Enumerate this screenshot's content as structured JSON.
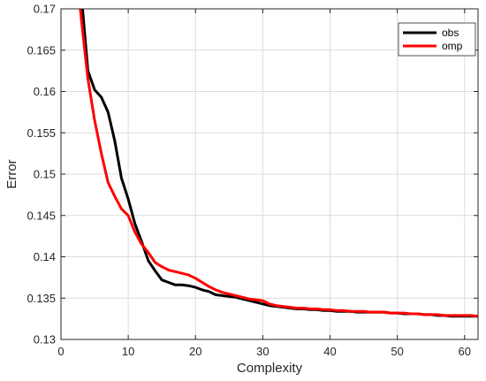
{
  "chart_data": {
    "type": "line",
    "title": "",
    "xlabel": "Complexity",
    "ylabel": "Error",
    "xlim": [
      0,
      62
    ],
    "ylim": [
      0.13,
      0.17
    ],
    "xticks": [
      0,
      10,
      20,
      30,
      40,
      50,
      60
    ],
    "yticks": [
      0.13,
      0.135,
      0.14,
      0.145,
      0.15,
      0.155,
      0.16,
      0.165,
      0.17
    ],
    "xtick_labels": [
      "0",
      "10",
      "20",
      "30",
      "40",
      "50",
      "60"
    ],
    "ytick_labels": [
      "0.13",
      "0.135",
      "0.14",
      "0.145",
      "0.15",
      "0.155",
      "0.16",
      "0.165",
      "0.17"
    ],
    "grid": true,
    "legend_position": "top-right",
    "series": [
      {
        "name": "obs",
        "color": "#000000",
        "x": [
          3,
          4,
          5,
          6,
          7,
          8,
          9,
          10,
          11,
          12,
          13,
          14,
          15,
          16,
          17,
          18,
          19,
          20,
          21,
          22,
          23,
          24,
          25,
          26,
          27,
          28,
          29,
          30,
          31,
          32,
          33,
          34,
          35,
          36,
          37,
          38,
          39,
          40,
          41,
          42,
          43,
          44,
          45,
          46,
          47,
          48,
          49,
          50,
          51,
          52,
          53,
          54,
          55,
          56,
          57,
          58,
          59,
          60,
          61,
          62
        ],
        "y": [
          0.172,
          0.1625,
          0.1602,
          0.1593,
          0.1575,
          0.154,
          0.1495,
          0.147,
          0.144,
          0.1418,
          0.1395,
          0.1383,
          0.1372,
          0.1369,
          0.1366,
          0.1366,
          0.1365,
          0.1363,
          0.136,
          0.1358,
          0.1354,
          0.1353,
          0.1352,
          0.1351,
          0.1349,
          0.1347,
          0.1345,
          0.1343,
          0.1341,
          0.134,
          0.1339,
          0.1338,
          0.1337,
          0.1337,
          0.1336,
          0.1336,
          0.1335,
          0.1335,
          0.1334,
          0.1334,
          0.1334,
          0.1333,
          0.1333,
          0.1333,
          0.1333,
          0.1333,
          0.1332,
          0.1332,
          0.1331,
          0.1331,
          0.1331,
          0.133,
          0.133,
          0.1329,
          0.1329,
          0.1328,
          0.1328,
          0.1328,
          0.1328,
          0.1328
        ]
      },
      {
        "name": "omp",
        "color": "#ff0000",
        "x": [
          2.5,
          3,
          4,
          5,
          6,
          7,
          8,
          9,
          10,
          11,
          12,
          13,
          14,
          15,
          16,
          17,
          18,
          19,
          20,
          21,
          22,
          23,
          24,
          25,
          26,
          27,
          28,
          29,
          30,
          31,
          32,
          33,
          34,
          35,
          36,
          37,
          38,
          39,
          40,
          41,
          42,
          43,
          44,
          45,
          46,
          47,
          48,
          49,
          50,
          51,
          52,
          53,
          54,
          55,
          56,
          57,
          58,
          59,
          60,
          61,
          62
        ],
        "y": [
          0.173,
          0.169,
          0.1615,
          0.1565,
          0.1525,
          0.149,
          0.1473,
          0.1458,
          0.145,
          0.143,
          0.1415,
          0.1405,
          0.1393,
          0.1388,
          0.1384,
          0.1382,
          0.138,
          0.1378,
          0.1374,
          0.1369,
          0.1364,
          0.136,
          0.1357,
          0.1355,
          0.1353,
          0.1351,
          0.1349,
          0.1348,
          0.1347,
          0.1343,
          0.1341,
          0.134,
          0.1339,
          0.1338,
          0.1338,
          0.1337,
          0.1337,
          0.1336,
          0.1336,
          0.1335,
          0.1335,
          0.1334,
          0.1334,
          0.1334,
          0.1333,
          0.1333,
          0.1333,
          0.1332,
          0.1332,
          0.1332,
          0.1331,
          0.1331,
          0.133,
          0.133,
          0.133,
          0.1329,
          0.1329,
          0.1329,
          0.1329,
          0.1329,
          0.1328
        ]
      }
    ]
  }
}
